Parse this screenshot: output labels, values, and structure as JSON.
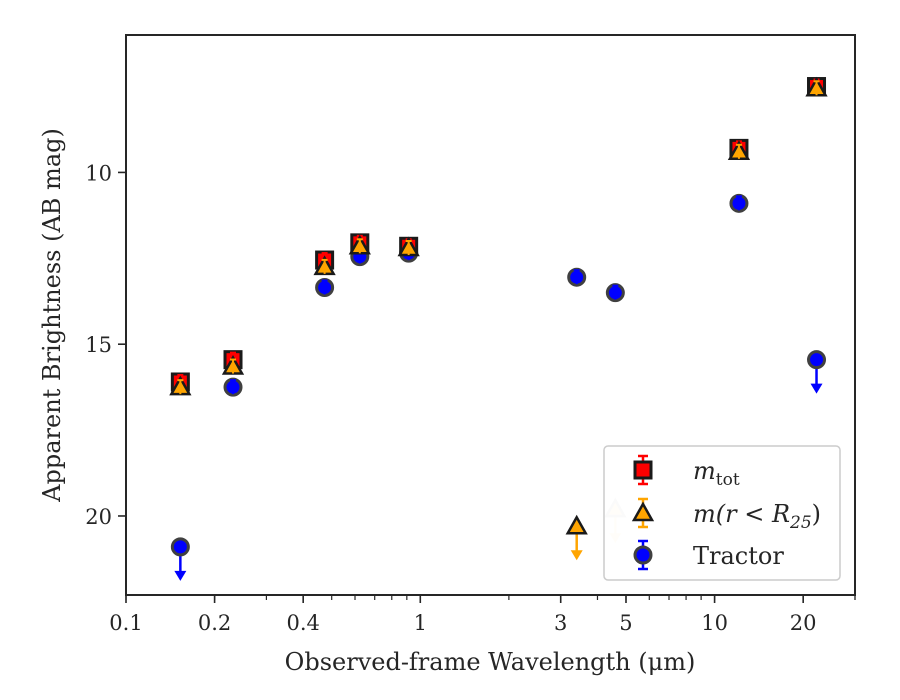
{
  "chart_data": {
    "type": "scatter",
    "title": "",
    "xlabel": "Observed-frame Wavelength (μm)",
    "ylabel": "Apparent Brightness (AB mag)",
    "xscale": "log",
    "yaxis_inverted": true,
    "xlim": [
      0.1,
      30
    ],
    "ylim": [
      22.3,
      6.0
    ],
    "xticks": [
      {
        "value": 0.1,
        "label": "0.1"
      },
      {
        "value": 0.2,
        "label": "0.2"
      },
      {
        "value": 0.4,
        "label": "0.4"
      },
      {
        "value": 1,
        "label": "1"
      },
      {
        "value": 3,
        "label": "3"
      },
      {
        "value": 5,
        "label": "5"
      },
      {
        "value": 10,
        "label": "10"
      },
      {
        "value": 20,
        "label": "20"
      }
    ],
    "yticks": [
      {
        "value": 10,
        "label": "10"
      },
      {
        "value": 15,
        "label": "15"
      },
      {
        "value": 20,
        "label": "20"
      }
    ],
    "grid": false,
    "legend_position": "lower right",
    "series": [
      {
        "name_parts": {
          "base": "m",
          "sub": "tot"
        },
        "marker": "square",
        "color": "#ff0000",
        "edge_color": "#1a1a1a",
        "points": [
          {
            "x": 0.153,
            "y": 16.1,
            "upper_limit": false
          },
          {
            "x": 0.231,
            "y": 15.45,
            "upper_limit": false
          },
          {
            "x": 0.473,
            "y": 12.55,
            "upper_limit": false
          },
          {
            "x": 0.623,
            "y": 12.05,
            "upper_limit": false
          },
          {
            "x": 0.913,
            "y": 12.15,
            "upper_limit": false
          },
          {
            "x": 12.1,
            "y": 9.3,
            "upper_limit": false
          },
          {
            "x": 22.2,
            "y": 7.5,
            "upper_limit": false
          }
        ]
      },
      {
        "name_parts": {
          "pre": "m(r < R",
          "sub": "25",
          "post": ")"
        },
        "marker": "triangle",
        "color": "#ffa500",
        "edge_color": "#1a1a1a",
        "points": [
          {
            "x": 0.153,
            "y": 16.25,
            "upper_limit": false
          },
          {
            "x": 0.231,
            "y": 15.65,
            "upper_limit": false
          },
          {
            "x": 0.473,
            "y": 12.75,
            "upper_limit": false
          },
          {
            "x": 0.623,
            "y": 12.15,
            "upper_limit": false
          },
          {
            "x": 0.913,
            "y": 12.2,
            "upper_limit": false
          },
          {
            "x": 3.4,
            "y": 20.3,
            "upper_limit": true
          },
          {
            "x": 4.6,
            "y": 19.8,
            "upper_limit": true,
            "faded": true
          },
          {
            "x": 12.1,
            "y": 9.4,
            "upper_limit": false
          },
          {
            "x": 22.2,
            "y": 7.55,
            "upper_limit": false
          }
        ]
      },
      {
        "name": "Tractor",
        "marker": "circle",
        "color": "#0000ff",
        "edge_color": "#404040",
        "points": [
          {
            "x": 0.153,
            "y": 20.9,
            "upper_limit": true
          },
          {
            "x": 0.231,
            "y": 16.25,
            "upper_limit": false
          },
          {
            "x": 0.473,
            "y": 13.35,
            "upper_limit": false
          },
          {
            "x": 0.623,
            "y": 12.45,
            "upper_limit": false
          },
          {
            "x": 0.913,
            "y": 12.35,
            "upper_limit": false
          },
          {
            "x": 3.4,
            "y": 13.05,
            "upper_limit": false
          },
          {
            "x": 4.6,
            "y": 13.5,
            "upper_limit": false
          },
          {
            "x": 12.1,
            "y": 10.9,
            "upper_limit": false
          },
          {
            "x": 22.2,
            "y": 15.45,
            "upper_limit": true
          }
        ]
      }
    ]
  }
}
